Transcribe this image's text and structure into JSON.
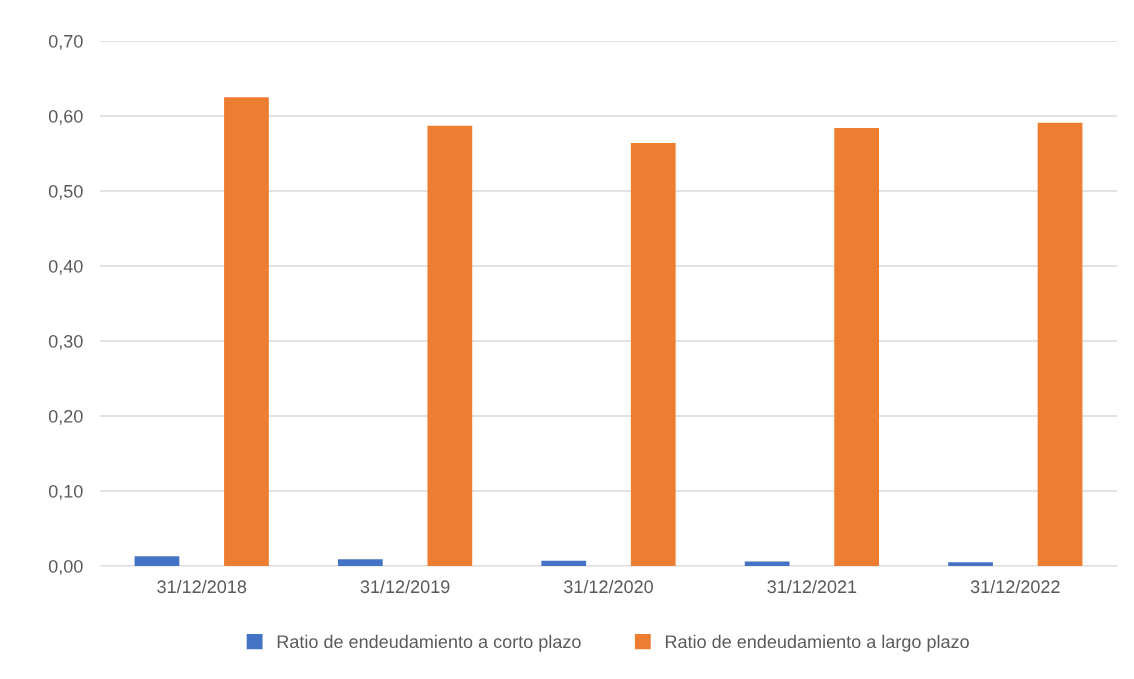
{
  "chart_data": {
    "type": "bar",
    "categories": [
      "31/12/2018",
      "31/12/2019",
      "31/12/2020",
      "31/12/2021",
      "31/12/2022"
    ],
    "series": [
      {
        "name": "Ratio de endeudamiento a corto plazo",
        "color": "#4472c4",
        "values": [
          0.013,
          0.009,
          0.007,
          0.006,
          0.005
        ]
      },
      {
        "name": "Ratio de endeudamiento a largo plazo",
        "color": "#ed7d31",
        "values": [
          0.625,
          0.587,
          0.564,
          0.584,
          0.591
        ]
      }
    ],
    "ylim": [
      0,
      0.7
    ],
    "yticks": [
      {
        "value": 0,
        "label": "0,00"
      },
      {
        "value": 0.1,
        "label": "0,10"
      },
      {
        "value": 0.2,
        "label": "0,20"
      },
      {
        "value": 0.3,
        "label": "0,30"
      },
      {
        "value": 0.4,
        "label": "0,40"
      },
      {
        "value": 0.5,
        "label": "0,50"
      },
      {
        "value": 0.6,
        "label": "0,60"
      },
      {
        "value": 0.7,
        "label": "0,70"
      }
    ],
    "grid": "y",
    "legend": "bottom"
  }
}
